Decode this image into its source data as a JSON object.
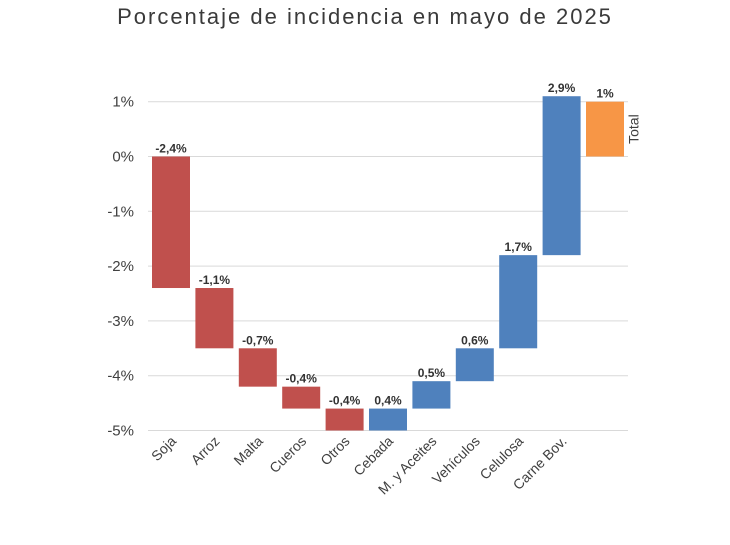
{
  "chart_data": {
    "type": "bar",
    "subtype": "waterfall",
    "title": "Porcentaje de incidencia en mayo de 2025",
    "categories": [
      "Soja",
      "Arroz",
      "Malta",
      "Cueros",
      "Otros",
      "Cebada",
      "M. y Aceites",
      "Vehículos",
      "Celulosa",
      "Carne Bov.",
      "Total"
    ],
    "values": [
      -2.4,
      -1.1,
      -0.7,
      -0.4,
      -0.4,
      0.4,
      0.5,
      0.6,
      1.7,
      2.9,
      1
    ],
    "data_labels": [
      "-2,4%",
      "-1,1%",
      "-0,7%",
      "-0,4%",
      "-0,4%",
      "0,4%",
      "0,5%",
      "0,6%",
      "1,7%",
      "2,9%",
      "1%"
    ],
    "ylim": [
      -5,
      1
    ],
    "yticks": [
      1,
      0,
      -1,
      -2,
      -3,
      -4,
      -5
    ],
    "ytick_labels": [
      "1%",
      "0%",
      "-1%",
      "-2%",
      "-3%",
      "-4%",
      "-5%"
    ],
    "grid": true,
    "colors": {
      "negative": "#c0504d",
      "positive": "#4f81bd",
      "total": "#f79646"
    }
  }
}
